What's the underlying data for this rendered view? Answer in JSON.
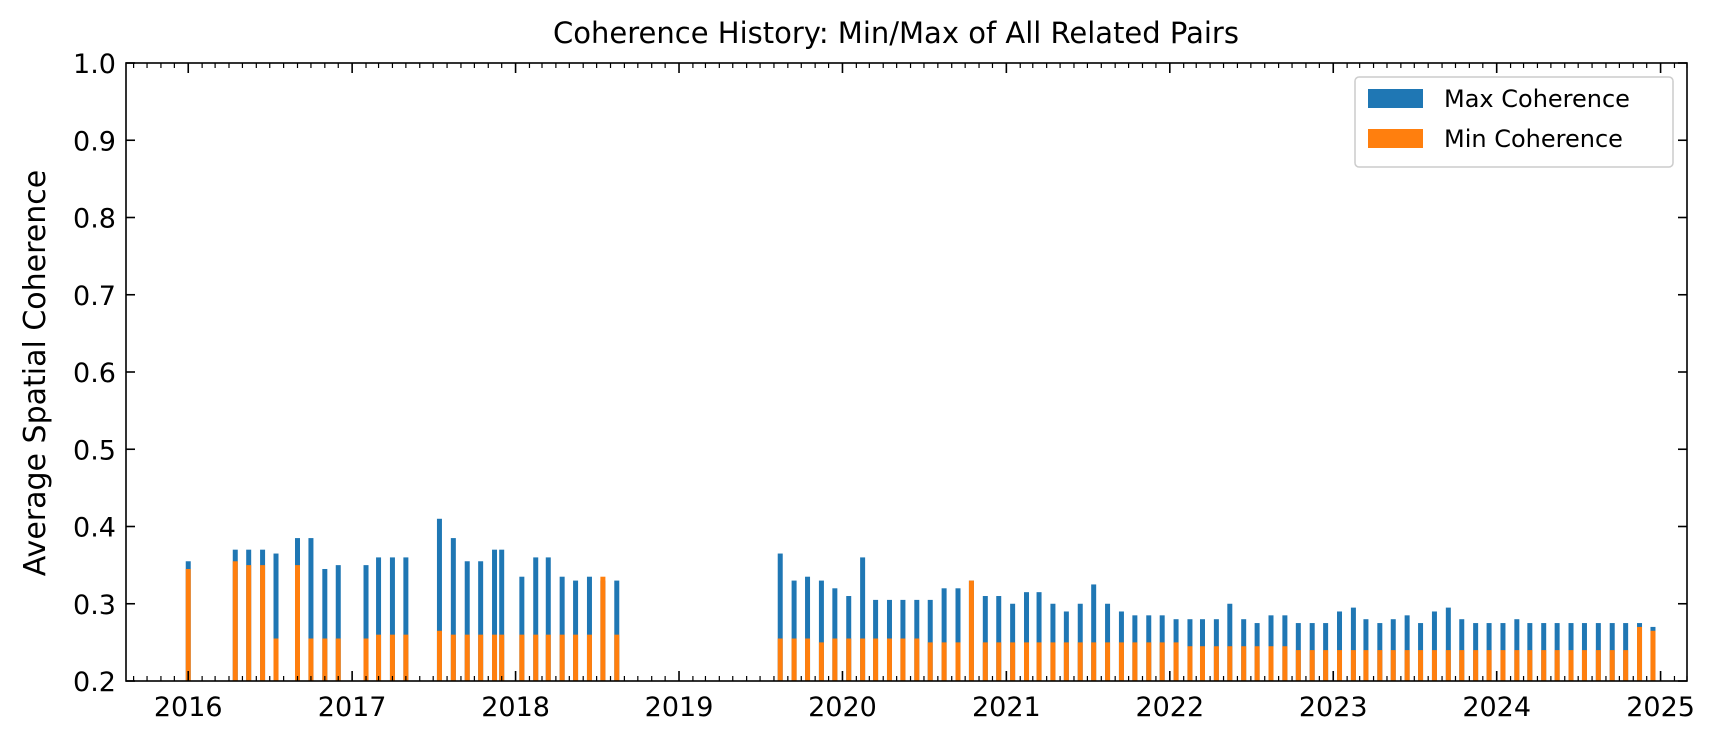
{
  "chart_data": {
    "type": "bar",
    "title": "Coherence History: Min/Max of All Related Pairs",
    "xlabel": "",
    "ylabel": "Average Spatial Coherence",
    "xlim": [
      "2015-08-15",
      "2025-03-01"
    ],
    "ylim": [
      0.2,
      1.0
    ],
    "yticks": [
      "0.2",
      "0.3",
      "0.4",
      "0.5",
      "0.6",
      "0.7",
      "0.8",
      "0.9",
      "1.0"
    ],
    "xticks": [
      "2016",
      "2017",
      "2018",
      "2019",
      "2020",
      "2021",
      "2022",
      "2023",
      "2024",
      "2025"
    ],
    "grid": false,
    "legend": "top-right",
    "colors": {
      "max": "#1f77b4",
      "min": "#ff7f0e"
    },
    "series": [
      {
        "name": "Max Coherence",
        "dates": [
          "2016-01-01",
          "2016-04-15",
          "2016-05-15",
          "2016-06-15",
          "2016-07-15",
          "2016-09-01",
          "2016-10-01",
          "2016-11-01",
          "2016-12-01",
          "2017-02-01",
          "2017-03-01",
          "2017-04-01",
          "2017-05-01",
          "2017-07-15",
          "2017-08-15",
          "2017-09-15",
          "2017-10-15",
          "2017-11-15",
          "2017-12-01",
          "2018-01-15",
          "2018-02-15",
          "2018-03-15",
          "2018-04-15",
          "2018-05-15",
          "2018-06-15",
          "2018-07-15",
          "2018-08-15",
          "2019-08-15",
          "2019-09-15",
          "2019-10-15",
          "2019-11-15",
          "2019-12-15",
          "2020-01-15",
          "2020-02-15",
          "2020-03-15",
          "2020-04-15",
          "2020-05-15",
          "2020-06-15",
          "2020-07-15",
          "2020-08-15",
          "2020-09-15",
          "2020-10-15",
          "2020-11-15",
          "2020-12-15",
          "2021-01-15",
          "2021-02-15",
          "2021-03-15",
          "2021-04-15",
          "2021-05-15",
          "2021-06-15",
          "2021-07-15",
          "2021-08-15",
          "2021-09-15",
          "2021-10-15",
          "2021-11-15",
          "2021-12-15",
          "2022-01-15",
          "2022-02-15",
          "2022-03-15",
          "2022-04-15",
          "2022-05-15",
          "2022-06-15",
          "2022-07-15",
          "2022-08-15",
          "2022-09-15",
          "2022-10-15",
          "2022-11-15",
          "2022-12-15",
          "2023-01-15",
          "2023-02-15",
          "2023-03-15",
          "2023-04-15",
          "2023-05-15",
          "2023-06-15",
          "2023-07-15",
          "2023-08-15",
          "2023-09-15",
          "2023-10-15",
          "2023-11-15",
          "2023-12-15",
          "2024-01-15",
          "2024-02-15",
          "2024-03-15",
          "2024-04-15",
          "2024-05-15",
          "2024-06-15",
          "2024-07-15",
          "2024-08-15",
          "2024-09-15",
          "2024-10-15",
          "2024-11-15",
          "2024-12-15"
        ],
        "values": [
          0.355,
          0.37,
          0.37,
          0.37,
          0.365,
          0.385,
          0.385,
          0.345,
          0.35,
          0.35,
          0.36,
          0.36,
          0.36,
          0.41,
          0.385,
          0.355,
          0.355,
          0.37,
          0.37,
          0.335,
          0.36,
          0.36,
          0.335,
          0.33,
          0.335,
          0.33,
          0.33,
          0.365,
          0.33,
          0.335,
          0.33,
          0.32,
          0.31,
          0.36,
          0.305,
          0.305,
          0.305,
          0.305,
          0.305,
          0.32,
          0.32,
          0.33,
          0.31,
          0.31,
          0.3,
          0.315,
          0.315,
          0.3,
          0.29,
          0.3,
          0.325,
          0.3,
          0.29,
          0.285,
          0.285,
          0.285,
          0.28,
          0.28,
          0.28,
          0.28,
          0.3,
          0.28,
          0.275,
          0.285,
          0.285,
          0.275,
          0.275,
          0.275,
          0.29,
          0.295,
          0.28,
          0.275,
          0.28,
          0.285,
          0.275,
          0.29,
          0.295,
          0.28,
          0.275,
          0.275,
          0.275,
          0.28,
          0.275,
          0.275,
          0.275,
          0.275,
          0.275,
          0.275,
          0.275,
          0.275,
          0.275,
          0.27
        ]
      },
      {
        "name": "Min Coherence",
        "dates": [
          "2016-01-01",
          "2016-04-15",
          "2016-05-15",
          "2016-06-15",
          "2016-07-15",
          "2016-09-01",
          "2016-10-01",
          "2016-11-01",
          "2016-12-01",
          "2017-02-01",
          "2017-03-01",
          "2017-04-01",
          "2017-05-01",
          "2017-07-15",
          "2017-08-15",
          "2017-09-15",
          "2017-10-15",
          "2017-11-15",
          "2017-12-01",
          "2018-01-15",
          "2018-02-15",
          "2018-03-15",
          "2018-04-15",
          "2018-05-15",
          "2018-06-15",
          "2018-07-15",
          "2018-08-15",
          "2019-08-15",
          "2019-09-15",
          "2019-10-15",
          "2019-11-15",
          "2019-12-15",
          "2020-01-15",
          "2020-02-15",
          "2020-03-15",
          "2020-04-15",
          "2020-05-15",
          "2020-06-15",
          "2020-07-15",
          "2020-08-15",
          "2020-09-15",
          "2020-10-15",
          "2020-11-15",
          "2020-12-15",
          "2021-01-15",
          "2021-02-15",
          "2021-03-15",
          "2021-04-15",
          "2021-05-15",
          "2021-06-15",
          "2021-07-15",
          "2021-08-15",
          "2021-09-15",
          "2021-10-15",
          "2021-11-15",
          "2021-12-15",
          "2022-01-15",
          "2022-02-15",
          "2022-03-15",
          "2022-04-15",
          "2022-05-15",
          "2022-06-15",
          "2022-07-15",
          "2022-08-15",
          "2022-09-15",
          "2022-10-15",
          "2022-11-15",
          "2022-12-15",
          "2023-01-15",
          "2023-02-15",
          "2023-03-15",
          "2023-04-15",
          "2023-05-15",
          "2023-06-15",
          "2023-07-15",
          "2023-08-15",
          "2023-09-15",
          "2023-10-15",
          "2023-11-15",
          "2023-12-15",
          "2024-01-15",
          "2024-02-15",
          "2024-03-15",
          "2024-04-15",
          "2024-05-15",
          "2024-06-15",
          "2024-07-15",
          "2024-08-15",
          "2024-09-15",
          "2024-10-15",
          "2024-11-15",
          "2024-12-15"
        ],
        "values": [
          0.345,
          0.355,
          0.35,
          0.35,
          0.255,
          0.35,
          0.255,
          0.255,
          0.255,
          0.255,
          0.26,
          0.26,
          0.26,
          0.265,
          0.26,
          0.26,
          0.26,
          0.26,
          0.26,
          0.26,
          0.26,
          0.26,
          0.26,
          0.26,
          0.26,
          0.335,
          0.26,
          0.255,
          0.255,
          0.255,
          0.25,
          0.255,
          0.255,
          0.255,
          0.255,
          0.255,
          0.255,
          0.255,
          0.25,
          0.25,
          0.25,
          0.33,
          0.25,
          0.25,
          0.25,
          0.25,
          0.25,
          0.25,
          0.25,
          0.25,
          0.25,
          0.25,
          0.25,
          0.25,
          0.25,
          0.25,
          0.25,
          0.245,
          0.245,
          0.245,
          0.245,
          0.245,
          0.245,
          0.245,
          0.245,
          0.24,
          0.24,
          0.24,
          0.24,
          0.24,
          0.24,
          0.24,
          0.24,
          0.24,
          0.24,
          0.24,
          0.24,
          0.24,
          0.24,
          0.24,
          0.24,
          0.24,
          0.24,
          0.24,
          0.24,
          0.24,
          0.24,
          0.24,
          0.24,
          0.24,
          0.27,
          0.265
        ]
      }
    ]
  }
}
